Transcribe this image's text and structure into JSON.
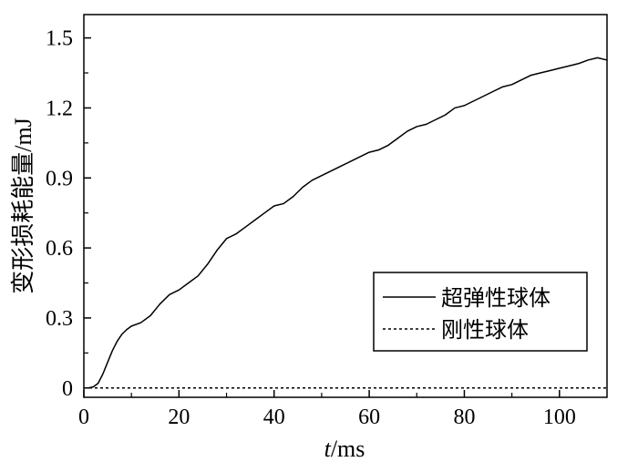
{
  "chart_data": {
    "type": "line",
    "xlabel_italic": "t",
    "xlabel_rest": "/ms",
    "ylabel": "变形损耗能量/mJ",
    "xlim": [
      0,
      110
    ],
    "ylim": [
      -0.04,
      1.6
    ],
    "xticks": [
      0,
      20,
      40,
      60,
      80,
      100
    ],
    "yticks": [
      0,
      0.3,
      0.6,
      0.9,
      1.2,
      1.5
    ],
    "ytick_labels": [
      "0",
      "0.3",
      "0.6",
      "0.9",
      "1.2",
      "1.5"
    ],
    "grid": false,
    "legend_position": "right",
    "series": [
      {
        "name": "超弹性球体",
        "style": "solid",
        "color": "#000000",
        "x": [
          0,
          1,
          2,
          3,
          4,
          5,
          6,
          7,
          8,
          9,
          10,
          12,
          14,
          16,
          18,
          20,
          22,
          24,
          26,
          28,
          30,
          32,
          34,
          36,
          38,
          40,
          42,
          44,
          46,
          48,
          50,
          52,
          54,
          56,
          58,
          60,
          62,
          64,
          66,
          68,
          70,
          72,
          74,
          76,
          78,
          80,
          82,
          84,
          86,
          88,
          90,
          92,
          94,
          96,
          98,
          100,
          102,
          104,
          106,
          108,
          110
        ],
        "y": [
          0,
          0,
          0.005,
          0.02,
          0.06,
          0.11,
          0.16,
          0.2,
          0.23,
          0.25,
          0.265,
          0.28,
          0.31,
          0.36,
          0.4,
          0.42,
          0.45,
          0.48,
          0.53,
          0.59,
          0.64,
          0.66,
          0.69,
          0.72,
          0.75,
          0.78,
          0.79,
          0.82,
          0.86,
          0.89,
          0.91,
          0.93,
          0.95,
          0.97,
          0.99,
          1.01,
          1.02,
          1.04,
          1.07,
          1.1,
          1.12,
          1.13,
          1.15,
          1.17,
          1.2,
          1.21,
          1.23,
          1.25,
          1.27,
          1.29,
          1.3,
          1.32,
          1.34,
          1.35,
          1.36,
          1.37,
          1.38,
          1.39,
          1.405,
          1.415,
          1.405
        ]
      },
      {
        "name": "刚性球体",
        "style": "dashed",
        "color": "#000000",
        "x": [
          0,
          110
        ],
        "y": [
          0,
          0
        ]
      }
    ]
  }
}
